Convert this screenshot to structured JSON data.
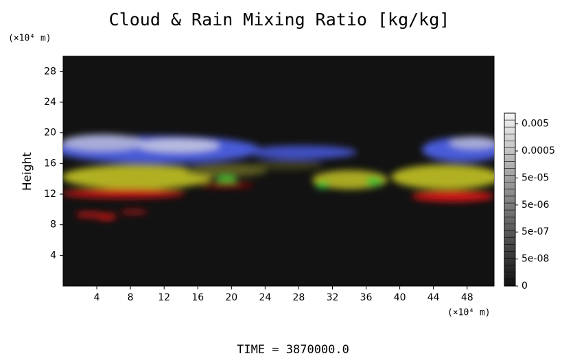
{
  "chart_data": {
    "type": "volume-render",
    "title": "Cloud & Rain Mixing Ratio [kg/kg]",
    "y_unit": "(×10⁴ m)",
    "x_unit": "(×10⁴ m)",
    "ylabel": "Height",
    "time_label": "TIME = 3870000.0",
    "xlim": [
      0,
      51.2
    ],
    "xticks": [
      4,
      8,
      12,
      16,
      20,
      24,
      28,
      32,
      36,
      40,
      44,
      48
    ],
    "ylim": [
      0,
      30
    ],
    "yticks": [
      4,
      8,
      12,
      16,
      20,
      24,
      28
    ],
    "clim": [
      5e-09,
      0.0125
    ],
    "colorbar_log": true,
    "colorbar_ticks": [
      0.005,
      0.0005,
      {
        "value": 5e-05,
        "label": "5e-05"
      },
      {
        "value": 5e-06,
        "label": "5e-06"
      },
      {
        "value": 5e-07,
        "label": "5e-07"
      },
      {
        "value": 5e-08,
        "label": "5e-08"
      },
      0
    ]
  }
}
